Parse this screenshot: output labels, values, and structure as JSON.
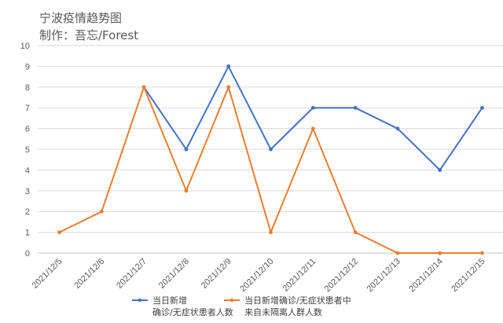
{
  "chart_data": {
    "type": "line",
    "title": "宁波疫情趋势图",
    "subtitle": "制作：吾忘/Forest",
    "categories": [
      "2021/12/5",
      "2021/12/6",
      "2021/12/7",
      "2021/12/8",
      "2021/12/9",
      "2021/12/10",
      "2021/12/11",
      "2021/12/12",
      "2021/12/13",
      "2021/12/14",
      "2021/12/15"
    ],
    "ylim": [
      0,
      10
    ],
    "yticks": [
      "0",
      "1",
      "2",
      "3",
      "4",
      "5",
      "6",
      "7",
      "8",
      "9",
      "10"
    ],
    "grid": true,
    "legend_position": "bottom",
    "series": [
      {
        "name_line1": "当日新增",
        "name_line2": "确诊/无症状患者人数",
        "color": "#4472C4",
        "values": [
          null,
          null,
          8,
          5,
          9,
          5,
          7,
          7,
          6,
          4,
          7
        ]
      },
      {
        "name_line1": "当日新增确诊/无症状患者中",
        "name_line2": "来自未隔离人群人数",
        "color": "#ED7D31",
        "values": [
          1,
          2,
          8,
          3,
          8,
          1,
          6,
          1,
          0,
          0,
          0
        ]
      }
    ]
  }
}
